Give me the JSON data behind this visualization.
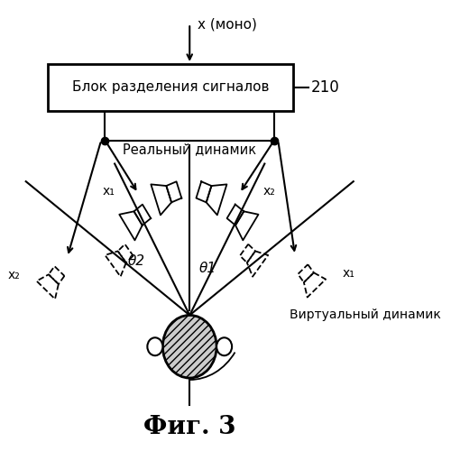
{
  "title": "Фиг. 3",
  "box_text": "Блок разделения сигналов",
  "box_label": "210",
  "input_label": "x (моно)",
  "real_speaker_label": "Реальный динамик",
  "virtual_speaker_label": "Виртуальный динамик",
  "theta1_label": "θ1",
  "theta2_label": "θ2",
  "x1_label": "x₁",
  "x2_label": "x₂",
  "bg_color": "#ffffff",
  "line_color": "#000000"
}
